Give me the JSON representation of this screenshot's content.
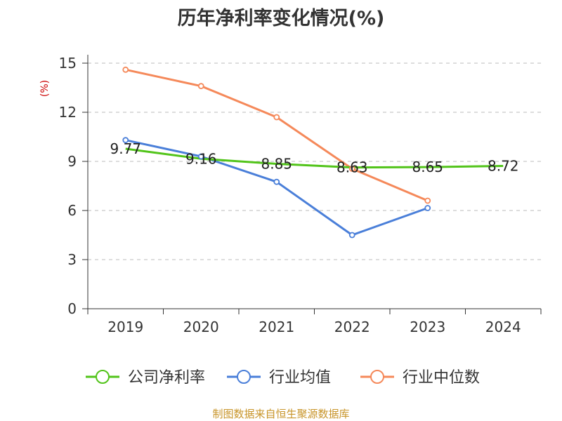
{
  "chart_data": {
    "type": "line",
    "title": "历年净利率变化情况(%)",
    "ylabel": "(%)",
    "xlabel": "",
    "categories": [
      "2019",
      "2020",
      "2021",
      "2022",
      "2023",
      "2024"
    ],
    "ylim": [
      0,
      15
    ],
    "yticks": [
      0,
      3,
      6,
      9,
      12,
      15
    ],
    "grid": true,
    "legend_position": "bottom",
    "series": [
      {
        "name": "公司净利率",
        "color": "#52c41a",
        "values": [
          9.77,
          9.16,
          8.85,
          8.63,
          8.65,
          8.72
        ],
        "show_labels": true,
        "show_markers": false
      },
      {
        "name": "行业均值",
        "color": "#4a7fd9",
        "values": [
          10.3,
          9.3,
          7.75,
          4.5,
          6.15,
          null
        ],
        "show_labels": false,
        "show_markers": true
      },
      {
        "name": "行业中位数",
        "color": "#f5895a",
        "values": [
          14.6,
          13.6,
          11.7,
          8.55,
          6.6,
          null
        ],
        "show_labels": false,
        "show_markers": true
      }
    ]
  },
  "source_note": "制图数据来自恒生聚源数据库"
}
